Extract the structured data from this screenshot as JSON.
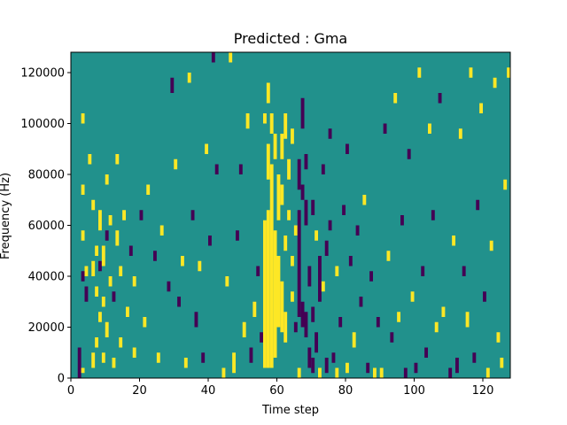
{
  "chart_data": {
    "type": "heatmap",
    "title": "Predicted : Gma",
    "xlabel": "Time step",
    "ylabel": "Frequency (Hz)",
    "xlim": [
      0,
      128
    ],
    "ylim": [
      0,
      128000
    ],
    "x_ticks": [
      0,
      20,
      40,
      60,
      80,
      100,
      120
    ],
    "y_ticks": [
      0,
      20000,
      40000,
      60000,
      80000,
      100000,
      120000
    ],
    "grid": false,
    "colormap": "viridis",
    "colors": {
      "background": "#21918c",
      "low": "#440154",
      "high": "#fde725"
    },
    "n_rows": 128,
    "row_height_hz": 1000,
    "background_value": 0,
    "description_note": "",
    "cells": [
      {
        "x": 2,
        "y_start": 0,
        "y_end": 12000,
        "value": -1
      },
      {
        "x": 3,
        "y_start": 2000,
        "y_end": 4000,
        "value": 1
      },
      {
        "x": 3,
        "y_start": 38000,
        "y_end": 42000,
        "value": -1
      },
      {
        "x": 3,
        "y_start": 54000,
        "y_end": 58000,
        "value": 1
      },
      {
        "x": 3,
        "y_start": 72000,
        "y_end": 76000,
        "value": 1
      },
      {
        "x": 3,
        "y_start": 100000,
        "y_end": 104000,
        "value": 1
      },
      {
        "x": 4,
        "y_start": 30000,
        "y_end": 36000,
        "value": -1
      },
      {
        "x": 4,
        "y_start": 40000,
        "y_end": 44000,
        "value": 1
      },
      {
        "x": 5,
        "y_start": 84000,
        "y_end": 88000,
        "value": 1
      },
      {
        "x": 6,
        "y_start": 4000,
        "y_end": 10000,
        "value": 1
      },
      {
        "x": 6,
        "y_start": 40000,
        "y_end": 46000,
        "value": 1
      },
      {
        "x": 6,
        "y_start": 66000,
        "y_end": 70000,
        "value": 1
      },
      {
        "x": 7,
        "y_start": 12000,
        "y_end": 16000,
        "value": 1
      },
      {
        "x": 7,
        "y_start": 32000,
        "y_end": 36000,
        "value": 1
      },
      {
        "x": 7,
        "y_start": 48000,
        "y_end": 52000,
        "value": 1
      },
      {
        "x": 8,
        "y_start": 22000,
        "y_end": 26000,
        "value": 1
      },
      {
        "x": 8,
        "y_start": 42000,
        "y_end": 46000,
        "value": -1
      },
      {
        "x": 8,
        "y_start": 58000,
        "y_end": 66000,
        "value": 1
      },
      {
        "x": 9,
        "y_start": 6000,
        "y_end": 10000,
        "value": 1
      },
      {
        "x": 9,
        "y_start": 28000,
        "y_end": 32000,
        "value": 1
      },
      {
        "x": 9,
        "y_start": 44000,
        "y_end": 52000,
        "value": 1
      },
      {
        "x": 10,
        "y_start": 16000,
        "y_end": 22000,
        "value": 1
      },
      {
        "x": 10,
        "y_start": 54000,
        "y_end": 58000,
        "value": -1
      },
      {
        "x": 10,
        "y_start": 76000,
        "y_end": 80000,
        "value": 1
      },
      {
        "x": 11,
        "y_start": 36000,
        "y_end": 40000,
        "value": 1
      },
      {
        "x": 11,
        "y_start": 60000,
        "y_end": 64000,
        "value": 1
      },
      {
        "x": 12,
        "y_start": 4000,
        "y_end": 8000,
        "value": 1
      },
      {
        "x": 12,
        "y_start": 30000,
        "y_end": 34000,
        "value": -1
      },
      {
        "x": 13,
        "y_start": 52000,
        "y_end": 58000,
        "value": 1
      },
      {
        "x": 13,
        "y_start": 84000,
        "y_end": 88000,
        "value": 1
      },
      {
        "x": 14,
        "y_start": 12000,
        "y_end": 16000,
        "value": 1
      },
      {
        "x": 14,
        "y_start": 40000,
        "y_end": 44000,
        "value": 1
      },
      {
        "x": 15,
        "y_start": 62000,
        "y_end": 66000,
        "value": 1
      },
      {
        "x": 16,
        "y_start": 24000,
        "y_end": 28000,
        "value": 1
      },
      {
        "x": 17,
        "y_start": 48000,
        "y_end": 52000,
        "value": -1
      },
      {
        "x": 18,
        "y_start": 8000,
        "y_end": 12000,
        "value": 1
      },
      {
        "x": 18,
        "y_start": 36000,
        "y_end": 40000,
        "value": 1
      },
      {
        "x": 20,
        "y_start": 62000,
        "y_end": 66000,
        "value": -1
      },
      {
        "x": 21,
        "y_start": 20000,
        "y_end": 24000,
        "value": 1
      },
      {
        "x": 22,
        "y_start": 72000,
        "y_end": 76000,
        "value": 1
      },
      {
        "x": 24,
        "y_start": 46000,
        "y_end": 50000,
        "value": -1
      },
      {
        "x": 25,
        "y_start": 6000,
        "y_end": 10000,
        "value": 1
      },
      {
        "x": 26,
        "y_start": 56000,
        "y_end": 60000,
        "value": 1
      },
      {
        "x": 28,
        "y_start": 34000,
        "y_end": 38000,
        "value": -1
      },
      {
        "x": 29,
        "y_start": 112000,
        "y_end": 118000,
        "value": -1
      },
      {
        "x": 30,
        "y_start": 82000,
        "y_end": 86000,
        "value": 1
      },
      {
        "x": 31,
        "y_start": 28000,
        "y_end": 32000,
        "value": -1
      },
      {
        "x": 32,
        "y_start": 44000,
        "y_end": 48000,
        "value": 1
      },
      {
        "x": 33,
        "y_start": 4000,
        "y_end": 8000,
        "value": 1
      },
      {
        "x": 34,
        "y_start": 116000,
        "y_end": 120000,
        "value": 1
      },
      {
        "x": 35,
        "y_start": 62000,
        "y_end": 66000,
        "value": -1
      },
      {
        "x": 36,
        "y_start": 20000,
        "y_end": 26000,
        "value": -1
      },
      {
        "x": 37,
        "y_start": 42000,
        "y_end": 46000,
        "value": 1
      },
      {
        "x": 38,
        "y_start": 6000,
        "y_end": 10000,
        "value": -1
      },
      {
        "x": 39,
        "y_start": 88000,
        "y_end": 92000,
        "value": 1
      },
      {
        "x": 40,
        "y_start": 52000,
        "y_end": 56000,
        "value": -1
      },
      {
        "x": 41,
        "y_start": 124000,
        "y_end": 128000,
        "value": -1
      },
      {
        "x": 42,
        "y_start": 80000,
        "y_end": 84000,
        "value": -1
      },
      {
        "x": 44,
        "y_start": 0,
        "y_end": 4000,
        "value": 1
      },
      {
        "x": 45,
        "y_start": 36000,
        "y_end": 40000,
        "value": 1
      },
      {
        "x": 46,
        "y_start": 124000,
        "y_end": 128000,
        "value": 1
      },
      {
        "x": 47,
        "y_start": 2000,
        "y_end": 10000,
        "value": 1
      },
      {
        "x": 48,
        "y_start": 54000,
        "y_end": 58000,
        "value": -1
      },
      {
        "x": 49,
        "y_start": 80000,
        "y_end": 84000,
        "value": -1
      },
      {
        "x": 50,
        "y_start": 16000,
        "y_end": 22000,
        "value": 1
      },
      {
        "x": 51,
        "y_start": 98000,
        "y_end": 104000,
        "value": 1
      },
      {
        "x": 52,
        "y_start": 6000,
        "y_end": 12000,
        "value": -1
      },
      {
        "x": 53,
        "y_start": 24000,
        "y_end": 30000,
        "value": 1
      },
      {
        "x": 54,
        "y_start": 40000,
        "y_end": 44000,
        "value": -1
      },
      {
        "x": 55,
        "y_start": 14000,
        "y_end": 18000,
        "value": -1
      },
      {
        "x": 56,
        "y_start": 4000,
        "y_end": 62000,
        "value": 1
      },
      {
        "x": 56,
        "y_start": 100000,
        "y_end": 104000,
        "value": 1
      },
      {
        "x": 57,
        "y_start": 4000,
        "y_end": 66000,
        "value": 1
      },
      {
        "x": 57,
        "y_start": 78000,
        "y_end": 92000,
        "value": 1
      },
      {
        "x": 57,
        "y_start": 108000,
        "y_end": 116000,
        "value": 1
      },
      {
        "x": 58,
        "y_start": 4000,
        "y_end": 84000,
        "value": 1
      },
      {
        "x": 58,
        "y_start": 96000,
        "y_end": 104000,
        "value": 1
      },
      {
        "x": 59,
        "y_start": 8000,
        "y_end": 58000,
        "value": 1
      },
      {
        "x": 59,
        "y_start": 86000,
        "y_end": 96000,
        "value": 1
      },
      {
        "x": 60,
        "y_start": 20000,
        "y_end": 48000,
        "value": 1
      },
      {
        "x": 60,
        "y_start": 62000,
        "y_end": 80000,
        "value": 1
      },
      {
        "x": 61,
        "y_start": 18000,
        "y_end": 38000,
        "value": 1
      },
      {
        "x": 61,
        "y_start": 68000,
        "y_end": 76000,
        "value": 1
      },
      {
        "x": 61,
        "y_start": 86000,
        "y_end": 96000,
        "value": 1
      },
      {
        "x": 62,
        "y_start": 14000,
        "y_end": 26000,
        "value": 1
      },
      {
        "x": 62,
        "y_start": 50000,
        "y_end": 56000,
        "value": 1
      },
      {
        "x": 62,
        "y_start": 94000,
        "y_end": 104000,
        "value": 1
      },
      {
        "x": 63,
        "y_start": 62000,
        "y_end": 66000,
        "value": 1
      },
      {
        "x": 63,
        "y_start": 78000,
        "y_end": 86000,
        "value": 1
      },
      {
        "x": 64,
        "y_start": 30000,
        "y_end": 34000,
        "value": 1
      },
      {
        "x": 64,
        "y_start": 44000,
        "y_end": 48000,
        "value": 1
      },
      {
        "x": 64,
        "y_start": 92000,
        "y_end": 98000,
        "value": 1
      },
      {
        "x": 65,
        "y_start": 18000,
        "y_end": 22000,
        "value": -1
      },
      {
        "x": 65,
        "y_start": 56000,
        "y_end": 60000,
        "value": 1
      },
      {
        "x": 66,
        "y_start": 0,
        "y_end": 4000,
        "value": 1
      },
      {
        "x": 66,
        "y_start": 24000,
        "y_end": 66000,
        "value": -1
      },
      {
        "x": 66,
        "y_start": 74000,
        "y_end": 86000,
        "value": -1
      },
      {
        "x": 67,
        "y_start": 20000,
        "y_end": 30000,
        "value": -1
      },
      {
        "x": 67,
        "y_start": 70000,
        "y_end": 76000,
        "value": -1
      },
      {
        "x": 67,
        "y_start": 98000,
        "y_end": 110000,
        "value": -1
      },
      {
        "x": 68,
        "y_start": 16000,
        "y_end": 26000,
        "value": -1
      },
      {
        "x": 68,
        "y_start": 60000,
        "y_end": 70000,
        "value": -1
      },
      {
        "x": 68,
        "y_start": 82000,
        "y_end": 88000,
        "value": -1
      },
      {
        "x": 69,
        "y_start": 4000,
        "y_end": 12000,
        "value": -1
      },
      {
        "x": 69,
        "y_start": 36000,
        "y_end": 44000,
        "value": -1
      },
      {
        "x": 70,
        "y_start": 2000,
        "y_end": 8000,
        "value": -1
      },
      {
        "x": 70,
        "y_start": 22000,
        "y_end": 28000,
        "value": -1
      },
      {
        "x": 70,
        "y_start": 64000,
        "y_end": 70000,
        "value": -1
      },
      {
        "x": 71,
        "y_start": 54000,
        "y_end": 58000,
        "value": 1
      },
      {
        "x": 71,
        "y_start": 10000,
        "y_end": 18000,
        "value": -1
      },
      {
        "x": 72,
        "y_start": 0,
        "y_end": 4000,
        "value": 1
      },
      {
        "x": 72,
        "y_start": 30000,
        "y_end": 48000,
        "value": -1
      },
      {
        "x": 73,
        "y_start": 34000,
        "y_end": 38000,
        "value": 1
      },
      {
        "x": 73,
        "y_start": 80000,
        "y_end": 84000,
        "value": -1
      },
      {
        "x": 74,
        "y_start": 2000,
        "y_end": 8000,
        "value": -1
      },
      {
        "x": 74,
        "y_start": 48000,
        "y_end": 54000,
        "value": -1
      },
      {
        "x": 75,
        "y_start": 58000,
        "y_end": 62000,
        "value": -1
      },
      {
        "x": 75,
        "y_start": 94000,
        "y_end": 98000,
        "value": -1
      },
      {
        "x": 76,
        "y_start": 6000,
        "y_end": 10000,
        "value": -1
      },
      {
        "x": 77,
        "y_start": 0,
        "y_end": 4000,
        "value": 1
      },
      {
        "x": 77,
        "y_start": 40000,
        "y_end": 44000,
        "value": 1
      },
      {
        "x": 78,
        "y_start": 20000,
        "y_end": 24000,
        "value": -1
      },
      {
        "x": 79,
        "y_start": 64000,
        "y_end": 68000,
        "value": -1
      },
      {
        "x": 80,
        "y_start": 2000,
        "y_end": 6000,
        "value": 1
      },
      {
        "x": 80,
        "y_start": 88000,
        "y_end": 92000,
        "value": -1
      },
      {
        "x": 81,
        "y_start": 44000,
        "y_end": 48000,
        "value": -1
      },
      {
        "x": 82,
        "y_start": 12000,
        "y_end": 18000,
        "value": 1
      },
      {
        "x": 83,
        "y_start": 56000,
        "y_end": 60000,
        "value": -1
      },
      {
        "x": 84,
        "y_start": 28000,
        "y_end": 32000,
        "value": -1
      },
      {
        "x": 85,
        "y_start": 68000,
        "y_end": 72000,
        "value": 1
      },
      {
        "x": 86,
        "y_start": 2000,
        "y_end": 6000,
        "value": -1
      },
      {
        "x": 87,
        "y_start": 38000,
        "y_end": 42000,
        "value": -1
      },
      {
        "x": 88,
        "y_start": 0,
        "y_end": 4000,
        "value": 1
      },
      {
        "x": 89,
        "y_start": 20000,
        "y_end": 24000,
        "value": -1
      },
      {
        "x": 90,
        "y_start": 0,
        "y_end": 4000,
        "value": 1
      },
      {
        "x": 91,
        "y_start": 96000,
        "y_end": 100000,
        "value": -1
      },
      {
        "x": 92,
        "y_start": 46000,
        "y_end": 50000,
        "value": 1
      },
      {
        "x": 93,
        "y_start": 14000,
        "y_end": 18000,
        "value": -1
      },
      {
        "x": 94,
        "y_start": 108000,
        "y_end": 112000,
        "value": 1
      },
      {
        "x": 95,
        "y_start": 22000,
        "y_end": 26000,
        "value": 1
      },
      {
        "x": 96,
        "y_start": 60000,
        "y_end": 64000,
        "value": -1
      },
      {
        "x": 97,
        "y_start": 0,
        "y_end": 4000,
        "value": -1
      },
      {
        "x": 98,
        "y_start": 86000,
        "y_end": 90000,
        "value": -1
      },
      {
        "x": 99,
        "y_start": 30000,
        "y_end": 34000,
        "value": 1
      },
      {
        "x": 100,
        "y_start": 2000,
        "y_end": 6000,
        "value": -1
      },
      {
        "x": 101,
        "y_start": 118000,
        "y_end": 122000,
        "value": 1
      },
      {
        "x": 102,
        "y_start": 40000,
        "y_end": 44000,
        "value": -1
      },
      {
        "x": 103,
        "y_start": 8000,
        "y_end": 12000,
        "value": -1
      },
      {
        "x": 104,
        "y_start": 96000,
        "y_end": 100000,
        "value": 1
      },
      {
        "x": 105,
        "y_start": 62000,
        "y_end": 66000,
        "value": -1
      },
      {
        "x": 106,
        "y_start": 18000,
        "y_end": 22000,
        "value": 1
      },
      {
        "x": 107,
        "y_start": 108000,
        "y_end": 112000,
        "value": -1
      },
      {
        "x": 108,
        "y_start": 24000,
        "y_end": 28000,
        "value": 1
      },
      {
        "x": 110,
        "y_start": 0,
        "y_end": 4000,
        "value": -1
      },
      {
        "x": 111,
        "y_start": 52000,
        "y_end": 56000,
        "value": 1
      },
      {
        "x": 112,
        "y_start": 2000,
        "y_end": 8000,
        "value": -1
      },
      {
        "x": 113,
        "y_start": 94000,
        "y_end": 98000,
        "value": 1
      },
      {
        "x": 114,
        "y_start": 40000,
        "y_end": 44000,
        "value": -1
      },
      {
        "x": 115,
        "y_start": 20000,
        "y_end": 26000,
        "value": 1
      },
      {
        "x": 116,
        "y_start": 118000,
        "y_end": 122000,
        "value": 1
      },
      {
        "x": 117,
        "y_start": 6000,
        "y_end": 10000,
        "value": -1
      },
      {
        "x": 118,
        "y_start": 66000,
        "y_end": 70000,
        "value": -1
      },
      {
        "x": 119,
        "y_start": 104000,
        "y_end": 108000,
        "value": 1
      },
      {
        "x": 120,
        "y_start": 30000,
        "y_end": 34000,
        "value": -1
      },
      {
        "x": 121,
        "y_start": 0,
        "y_end": 4000,
        "value": 1
      },
      {
        "x": 122,
        "y_start": 50000,
        "y_end": 54000,
        "value": 1
      },
      {
        "x": 123,
        "y_start": 114000,
        "y_end": 118000,
        "value": 1
      },
      {
        "x": 124,
        "y_start": 14000,
        "y_end": 18000,
        "value": 1
      },
      {
        "x": 125,
        "y_start": 4000,
        "y_end": 8000,
        "value": 1
      },
      {
        "x": 126,
        "y_start": 74000,
        "y_end": 78000,
        "value": 1
      },
      {
        "x": 127,
        "y_start": 118000,
        "y_end": 122000,
        "value": 1
      }
    ]
  }
}
